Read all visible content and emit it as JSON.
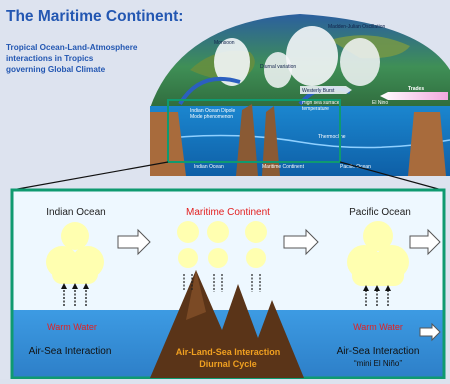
{
  "title": "The Maritime Continent:",
  "subtitle_lines": [
    "Tropical Ocean-Land-Atmosphere",
    "interactions in Tropics",
    "governing Global Climate"
  ],
  "top_labels": {
    "monsoon": "Monsoon",
    "mjo": "Madden-Julian Oscillation",
    "diurnal": "Diurnal variation",
    "trades": "Trades",
    "westerly_burst": "Westerly Burst",
    "high_sst_1": "High sea surface",
    "high_sst_2": "temperature",
    "io_dipole_1": "Indian Ocean Dipole",
    "io_dipole_2": "Mode phenomenon",
    "el_nino": "El Nino",
    "thermocline": "Thermocline",
    "indian_ocean": "Indian Ocean",
    "maritime_continent": "Maritime Continent",
    "pacific_ocean": "Pacific Ocean"
  },
  "panel": {
    "indian_ocean": "Indian Ocean",
    "maritime_continent": "Maritime Continent",
    "pacific_ocean": "Pacific Ocean",
    "warm_water_left": "Warm Water",
    "warm_water_right": "Warm Water",
    "air_sea_left": "Air-Sea Interaction",
    "air_land_sea": "Air-Land-Sea Interaction",
    "diurnal_cycle": "Diurnal Cycle",
    "air_sea_right": "Air-Sea Interaction",
    "mini_el_nino": "“mini El Niño”"
  },
  "colors": {
    "title": "#2357b2",
    "panel_border": "#0f9a70",
    "sky": "#eef8ff",
    "cloud": "#ffffb0",
    "water": "#2f8ed6",
    "mountain": "#5a3418",
    "warm_water_text": "#e32020",
    "maritime_text": "#e32020",
    "orange_text": "#f0a020"
  }
}
